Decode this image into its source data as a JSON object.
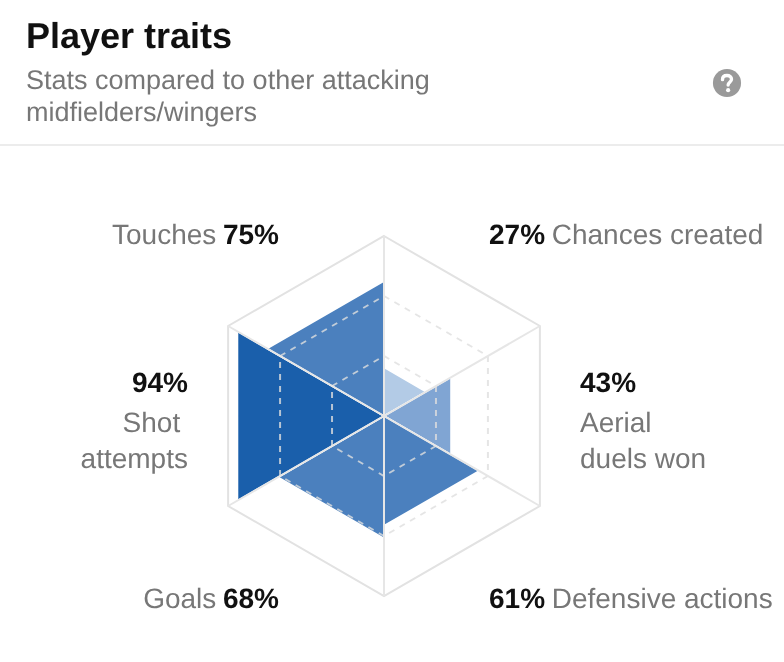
{
  "chart_data": {
    "type": "other",
    "title": "Player traits",
    "subtitle": "Stats compared to other attacking midfielders/wingers",
    "categories": [
      "Chances created",
      "Aerial duels won",
      "Defensive actions",
      "Goals",
      "Shot attempts",
      "Touches"
    ],
    "values": [
      27,
      43,
      61,
      68,
      94,
      75
    ],
    "value_labels": [
      "27%",
      "43%",
      "61%",
      "68%",
      "94%",
      "75%"
    ],
    "colors": [
      "#b3cbe6",
      "#80a5d3",
      "#4b80be",
      "#4b80be",
      "#1a5fab",
      "#4b80be"
    ]
  }
}
